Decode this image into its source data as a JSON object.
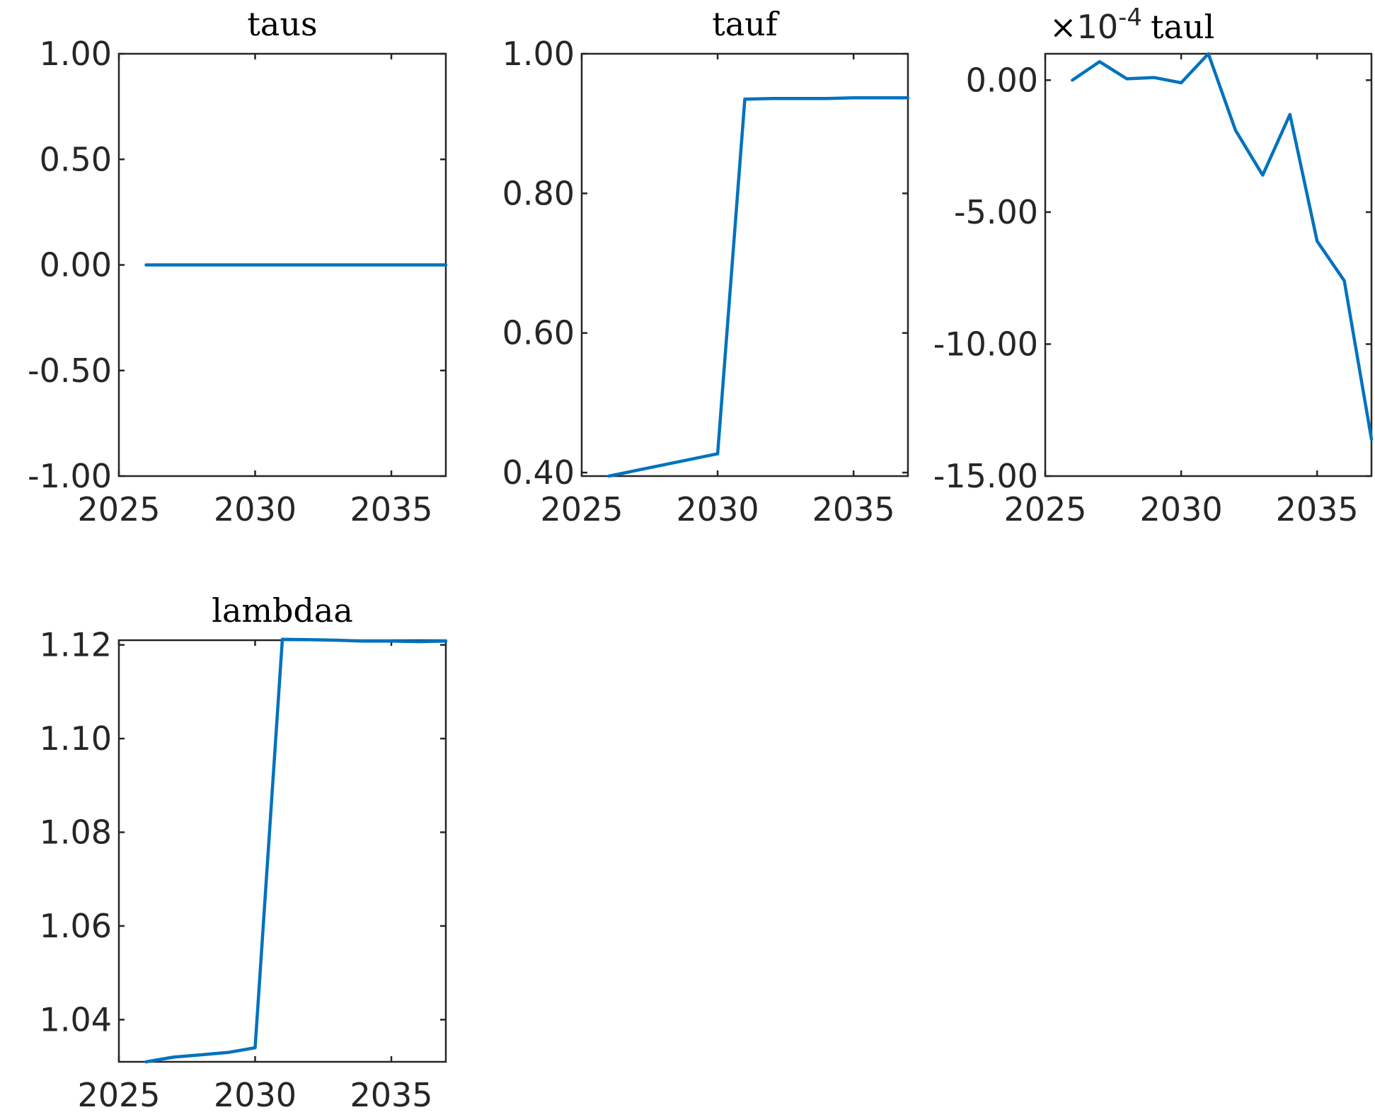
{
  "chart_data": [
    {
      "type": "line",
      "title": "taus",
      "x": [
        2026,
        2027,
        2028,
        2029,
        2030,
        2031,
        2032,
        2033,
        2034,
        2035,
        2036,
        2037
      ],
      "series": [
        {
          "values": [
            0,
            0,
            0,
            0,
            0,
            0,
            0,
            0,
            0,
            0,
            0,
            0
          ]
        }
      ],
      "xlim": [
        2025,
        2037
      ],
      "ylim": [
        -1,
        1
      ],
      "xticks": [
        2025,
        2030,
        2035
      ],
      "xtick_labels": [
        "2025",
        "2030",
        "2035"
      ],
      "yticks": [
        1,
        0.5,
        0,
        -0.5,
        -1
      ],
      "ytick_labels": [
        "1.00",
        "0.50",
        "0.00",
        "-0.50",
        "-1.00"
      ],
      "xlabel": "",
      "ylabel": "",
      "grid": false
    },
    {
      "type": "line",
      "title": "tauf",
      "x": [
        2026,
        2027,
        2028,
        2029,
        2030,
        2031,
        2032,
        2033,
        2034,
        2035,
        2036,
        2037
      ],
      "series": [
        {
          "values": [
            0.395,
            0.403,
            0.411,
            0.419,
            0.427,
            0.935,
            0.936,
            0.936,
            0.936,
            0.937,
            0.937,
            0.937
          ]
        }
      ],
      "xlim": [
        2025,
        2037
      ],
      "ylim": [
        0.395,
        1.0
      ],
      "xticks": [
        2025,
        2030,
        2035
      ],
      "xtick_labels": [
        "2025",
        "2030",
        "2035"
      ],
      "yticks": [
        1.0,
        0.8,
        0.6,
        0.4
      ],
      "ytick_labels": [
        "1.00",
        "0.80",
        "0.60",
        "0.40"
      ],
      "xlabel": "",
      "ylabel": "",
      "grid": false
    },
    {
      "type": "line",
      "title": "taul",
      "y_exponent_base": "10",
      "y_exponent_power": "-4",
      "x": [
        2026,
        2027,
        2028,
        2029,
        2030,
        2031,
        2032,
        2033,
        2034,
        2035,
        2036,
        2037
      ],
      "series": [
        {
          "values": [
            0.0,
            0.7,
            0.05,
            0.1,
            -0.1,
            1.0,
            -1.9,
            -3.6,
            -1.3,
            -6.1,
            -7.6,
            -13.6
          ]
        }
      ],
      "xlim": [
        2025,
        2037
      ],
      "ylim": [
        -15,
        1
      ],
      "xticks": [
        2025,
        2030,
        2035
      ],
      "xtick_labels": [
        "2025",
        "2030",
        "2035"
      ],
      "yticks": [
        0,
        -5,
        -10,
        -15
      ],
      "ytick_labels": [
        "0.00",
        "-5.00",
        "-10.00",
        "-15.00"
      ],
      "xlabel": "",
      "ylabel": "",
      "grid": false
    },
    {
      "type": "line",
      "title": "lambdaa",
      "x": [
        2026,
        2027,
        2028,
        2029,
        2030,
        2031,
        2032,
        2033,
        2034,
        2035,
        2036,
        2037
      ],
      "series": [
        {
          "values": [
            1.031,
            1.032,
            1.0325,
            1.033,
            1.034,
            1.1212,
            1.1211,
            1.121,
            1.1208,
            1.1208,
            1.1207,
            1.1208
          ]
        }
      ],
      "xlim": [
        2025,
        2037
      ],
      "ylim": [
        1.031,
        1.121
      ],
      "xticks": [
        2025,
        2030,
        2035
      ],
      "xtick_labels": [
        "2025",
        "2030",
        "2035"
      ],
      "yticks": [
        1.12,
        1.1,
        1.08,
        1.06,
        1.04
      ],
      "ytick_labels": [
        "1.12",
        "1.10",
        "1.08",
        "1.06",
        "1.04"
      ],
      "xlabel": "",
      "ylabel": "",
      "grid": false
    }
  ],
  "colors": {
    "series": "#0072bd",
    "axes": "#262626",
    "title": "#000000",
    "background": "#ffffff"
  }
}
